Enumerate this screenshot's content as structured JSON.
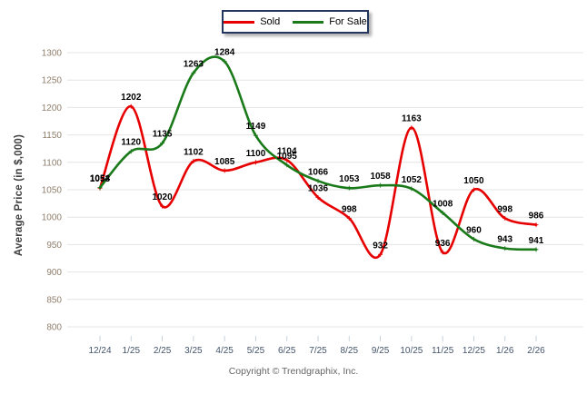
{
  "legend": {
    "items": [
      {
        "label": "Sold",
        "color": "#e60000"
      },
      {
        "label": "For Sale",
        "color": "#1a7a1a"
      }
    ]
  },
  "footer": {
    "text": "Copyright © Trendgraphix, Inc."
  },
  "chart_data": {
    "type": "line",
    "title": "",
    "xlabel": "",
    "ylabel": "Average Price (in $,000)",
    "categories": [
      "12/24",
      "1/25",
      "2/25",
      "3/25",
      "4/25",
      "5/25",
      "6/25",
      "7/25",
      "8/25",
      "9/25",
      "10/25",
      "11/25",
      "12/25",
      "1/26",
      "2/26"
    ],
    "series": [
      {
        "name": "Sold",
        "color": "#e60000",
        "values": [
          1053,
          1202,
          1020,
          1102,
          1085,
          1100,
          1104,
          1036,
          998,
          932,
          1163,
          936,
          1050,
          998,
          986
        ]
      },
      {
        "name": "For Sale",
        "color": "#1a7a1a",
        "values": [
          1054,
          1120,
          1135,
          1263,
          1284,
          1149,
          1095,
          1066,
          1053,
          1058,
          1052,
          1008,
          960,
          943,
          941
        ]
      }
    ],
    "ylim": [
      800,
      1300
    ],
    "yticks": [
      800,
      850,
      900,
      950,
      1000,
      1050,
      1100,
      1150,
      1200,
      1250,
      1300
    ],
    "grid": true,
    "legend_position": "top-center",
    "data_labels": true,
    "axis_colors": {
      "y_tick_label": "#8f7e6c",
      "x_tick_label": "#44546a",
      "grid": "#e4e4e4",
      "tick": "#c9d2dc",
      "data_label": "#000000"
    }
  }
}
